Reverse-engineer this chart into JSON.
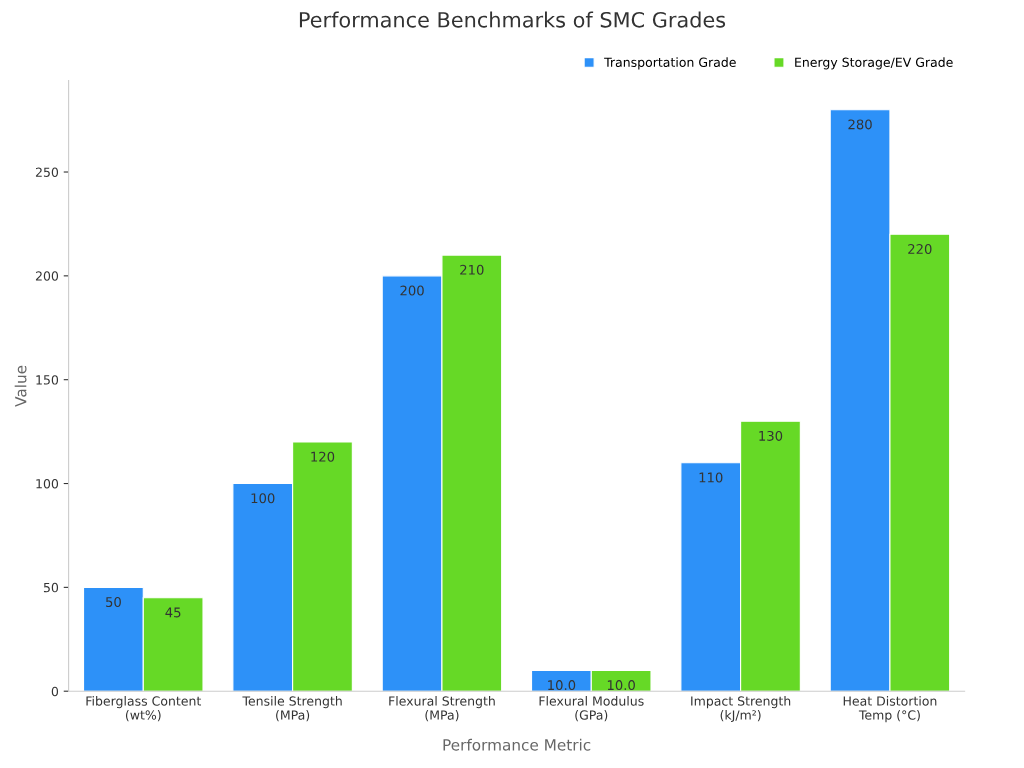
{
  "chart_data": {
    "type": "bar",
    "title": "Performance Benchmarks of SMC Grades",
    "xlabel": "Performance Metric",
    "ylabel": "Value",
    "categories": [
      "Fiberglass Content\n(wt%)",
      "Tensile Strength\n(MPa)",
      "Flexural Strength\n(MPa)",
      "Flexural Modulus\n(GPa)",
      "Impact Strength\n(kJ/m²)",
      "Heat Distortion\nTemp (°C)"
    ],
    "series": [
      {
        "name": "Transportation Grade",
        "color": "#2d91f8",
        "values": [
          50,
          100,
          200,
          10.0,
          110,
          280
        ],
        "value_labels": [
          "50",
          "100",
          "200",
          "10.0",
          "110",
          "280"
        ]
      },
      {
        "name": "Energy Storage/EV Grade",
        "color": "#66d926",
        "values": [
          45,
          120,
          210,
          10.0,
          130,
          220
        ],
        "value_labels": [
          "45",
          "120",
          "210",
          "10.0",
          "130",
          "220"
        ]
      }
    ],
    "ylim": [
      0,
      294
    ],
    "yticks": [
      0,
      50,
      100,
      150,
      200,
      250
    ],
    "grid": false,
    "legend": "top right"
  }
}
